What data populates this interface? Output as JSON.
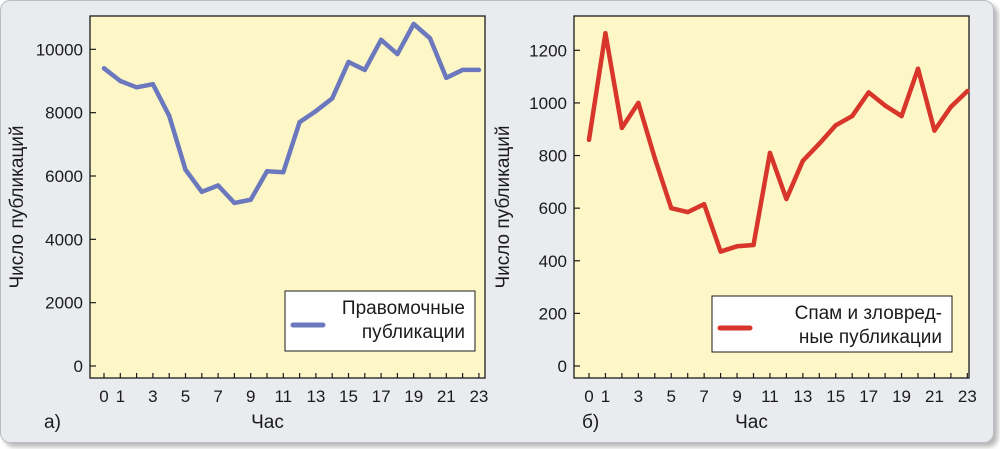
{
  "chart_data": [
    {
      "type": "line",
      "panel_label": "а)",
      "xlabel": "Час",
      "ylabel": "Число публикаций",
      "x": [
        0,
        1,
        2,
        3,
        4,
        5,
        6,
        7,
        8,
        9,
        10,
        11,
        12,
        13,
        14,
        15,
        16,
        17,
        18,
        19,
        20,
        21,
        22,
        23
      ],
      "x_tick_labels": [
        "0",
        "1",
        "3",
        "5",
        "7",
        "9",
        "11",
        "13",
        "15",
        "17",
        "19",
        "21",
        "23"
      ],
      "y_ticks": [
        0,
        2000,
        4000,
        6000,
        8000,
        10000
      ],
      "ylim": [
        0,
        10800
      ],
      "grid": false,
      "legend_position": "bottom-right",
      "series": [
        {
          "name_lines": [
            "Правомочные",
            "публикации"
          ],
          "color": "#6b78bd",
          "values": [
            9400,
            9000,
            8800,
            8900,
            7900,
            6200,
            5500,
            5700,
            5150,
            5250,
            6150,
            6120,
            7700,
            8050,
            8450,
            9600,
            9350,
            10300,
            9850,
            10800,
            10350,
            9100,
            9350,
            9350
          ]
        }
      ],
      "background": "#fdf6c7"
    },
    {
      "type": "line",
      "panel_label": "б)",
      "xlabel": "Час",
      "ylabel": "Число публикаций",
      "x": [
        0,
        1,
        2,
        3,
        4,
        5,
        6,
        7,
        8,
        9,
        10,
        11,
        12,
        13,
        14,
        15,
        16,
        17,
        18,
        19,
        20,
        21,
        22,
        23
      ],
      "x_tick_labels": [
        "0",
        "1",
        "3",
        "5",
        "7",
        "9",
        "11",
        "13",
        "15",
        "17",
        "19",
        "21",
        "23"
      ],
      "y_ticks": [
        0,
        200,
        400,
        600,
        800,
        1000,
        1200
      ],
      "ylim": [
        0,
        1300
      ],
      "grid": false,
      "legend_position": "bottom-right",
      "series": [
        {
          "name_lines": [
            "Спам и зловред-",
            "ные публикации"
          ],
          "color": "#d8362b",
          "values": [
            860,
            1265,
            905,
            1000,
            790,
            600,
            585,
            615,
            435,
            455,
            460,
            810,
            635,
            780,
            845,
            915,
            950,
            1040,
            990,
            950,
            1130,
            895,
            985,
            1045
          ]
        }
      ],
      "background": "#fdf6c7"
    }
  ]
}
